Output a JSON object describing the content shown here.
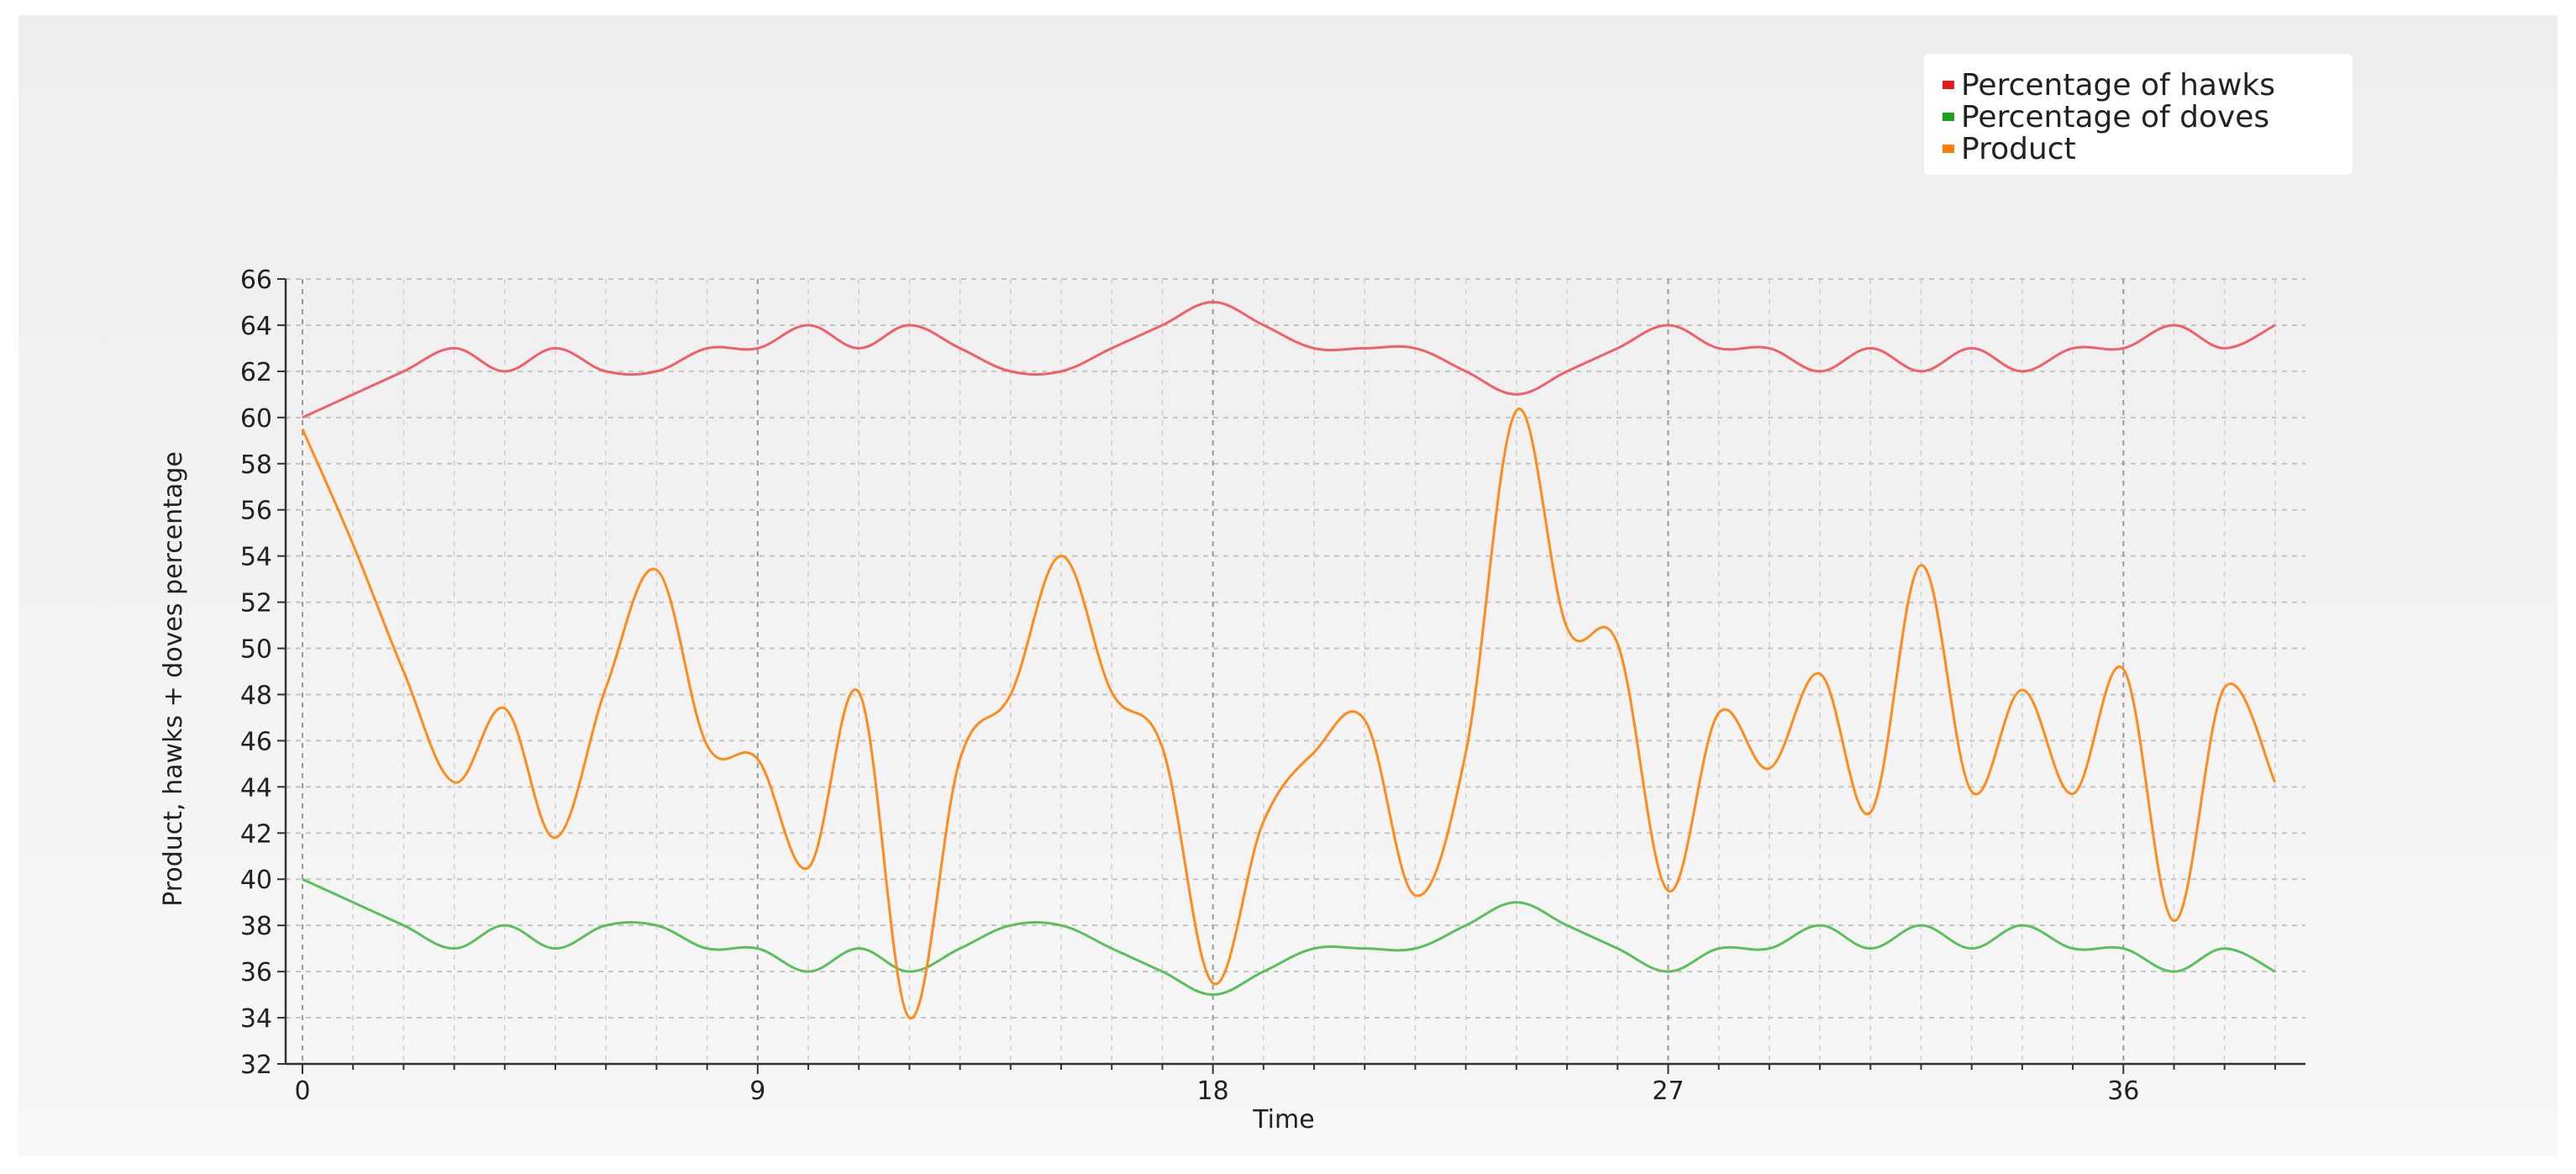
{
  "chart_data": {
    "type": "line",
    "xlabel": "Time",
    "ylabel": "Product, hawks + doves percentage",
    "xlim": [
      0,
      39.5
    ],
    "ylim": [
      32,
      66
    ],
    "x_ticks": [
      0,
      9,
      18,
      27,
      36
    ],
    "x_minor_step": 1,
    "y_ticks": [
      32,
      34,
      36,
      38,
      40,
      42,
      44,
      46,
      48,
      50,
      52,
      54,
      56,
      58,
      60,
      62,
      64,
      66
    ],
    "grid": true,
    "legend_position": "top-right",
    "x": [
      0,
      1,
      2,
      3,
      4,
      5,
      6,
      7,
      8,
      9,
      10,
      11,
      12,
      13,
      14,
      15,
      16,
      17,
      18,
      19,
      20,
      21,
      22,
      23,
      24,
      25,
      26,
      27,
      28,
      29,
      30,
      31,
      32,
      33,
      34,
      35,
      36,
      37,
      38,
      39
    ],
    "series": [
      {
        "name": "Percentage of hawks",
        "color": "#f0606a",
        "values": [
          60,
          61,
          62,
          63,
          62,
          63,
          62,
          62,
          63,
          63,
          64,
          63,
          64,
          63,
          62,
          62,
          63,
          64,
          65,
          64,
          63,
          63,
          63,
          62,
          61,
          62,
          63,
          64,
          63,
          63,
          62,
          63,
          62,
          63,
          62,
          63,
          63,
          64,
          63,
          64
        ]
      },
      {
        "name": "Percentage of doves",
        "color": "#5cbf5c",
        "values": [
          40,
          39,
          38,
          37,
          38,
          37,
          38,
          38,
          37,
          37,
          36,
          37,
          36,
          37,
          38,
          38,
          37,
          36,
          35,
          36,
          37,
          37,
          37,
          38,
          39,
          38,
          37,
          36,
          37,
          37,
          38,
          37,
          38,
          37,
          38,
          37,
          37,
          36,
          37,
          36
        ]
      },
      {
        "name": "Product",
        "color": "#ff8c1a",
        "values": [
          59.5,
          54.5,
          49,
          44.2,
          47.4,
          41.8,
          48.3,
          53.4,
          45.8,
          45.2,
          40.5,
          48.1,
          34,
          45.2,
          48,
          54,
          48.1,
          45.7,
          35.5,
          42.5,
          45.5,
          46.9,
          39.3,
          45.5,
          60.3,
          50.9,
          50.2,
          39.5,
          47.2,
          44.8,
          48.9,
          42.9,
          53.6,
          43.8,
          48.2,
          43.7,
          49.1,
          38.2,
          48.3,
          44.2
        ]
      }
    ]
  },
  "legend_swatch_colors": [
    "#e8181e",
    "#1aa01a",
    "#ff7f00"
  ]
}
